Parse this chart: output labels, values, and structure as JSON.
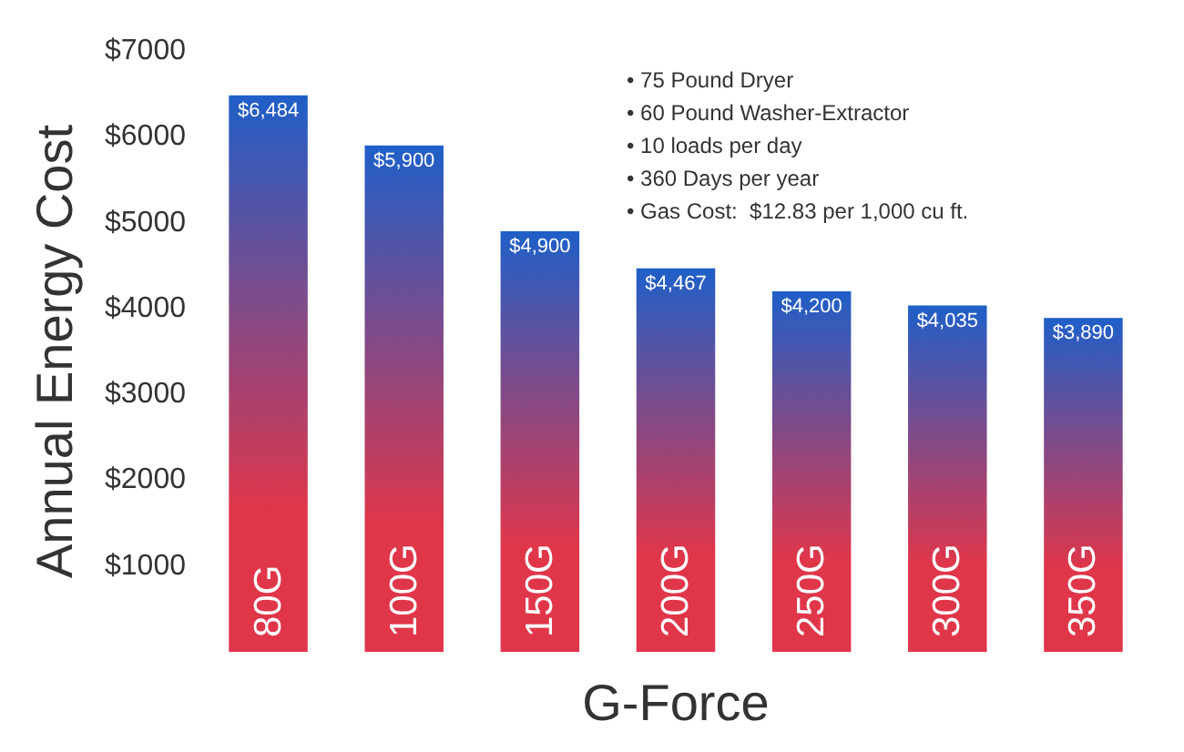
{
  "chart_data": {
    "type": "bar",
    "xlabel": "G-Force",
    "ylabel": "Annual Energy Cost",
    "categories": [
      "80G",
      "100G",
      "150G",
      "200G",
      "250G",
      "300G",
      "350G"
    ],
    "values": [
      6484,
      5900,
      4900,
      4467,
      4200,
      4035,
      3890
    ],
    "value_labels": [
      "$6,484",
      "$5,900",
      "$4,900",
      "$4,467",
      "$4,200",
      "$4,035",
      "$3,890"
    ],
    "color": "#1f5fc8",
    "ylim": [
      0,
      7000
    ],
    "yticks": [
      {
        "value": 1000,
        "label": "$1000"
      },
      {
        "value": 2000,
        "label": "$2000"
      },
      {
        "value": 3000,
        "label": "$3000"
      },
      {
        "value": 4000,
        "label": "$4000"
      },
      {
        "value": 5000,
        "label": "$5000"
      },
      {
        "value": 6000,
        "label": "$6000"
      },
      {
        "value": 7000,
        "label": "$7000"
      }
    ],
    "grid": false,
    "annotations": [
      "• 75 Pound Dryer",
      "• 60 Pound Washer-Extractor",
      "• 10 loads per day",
      "• 360 Days per year",
      "• Gas Cost:  $12.83 per 1,000 cu ft."
    ]
  }
}
